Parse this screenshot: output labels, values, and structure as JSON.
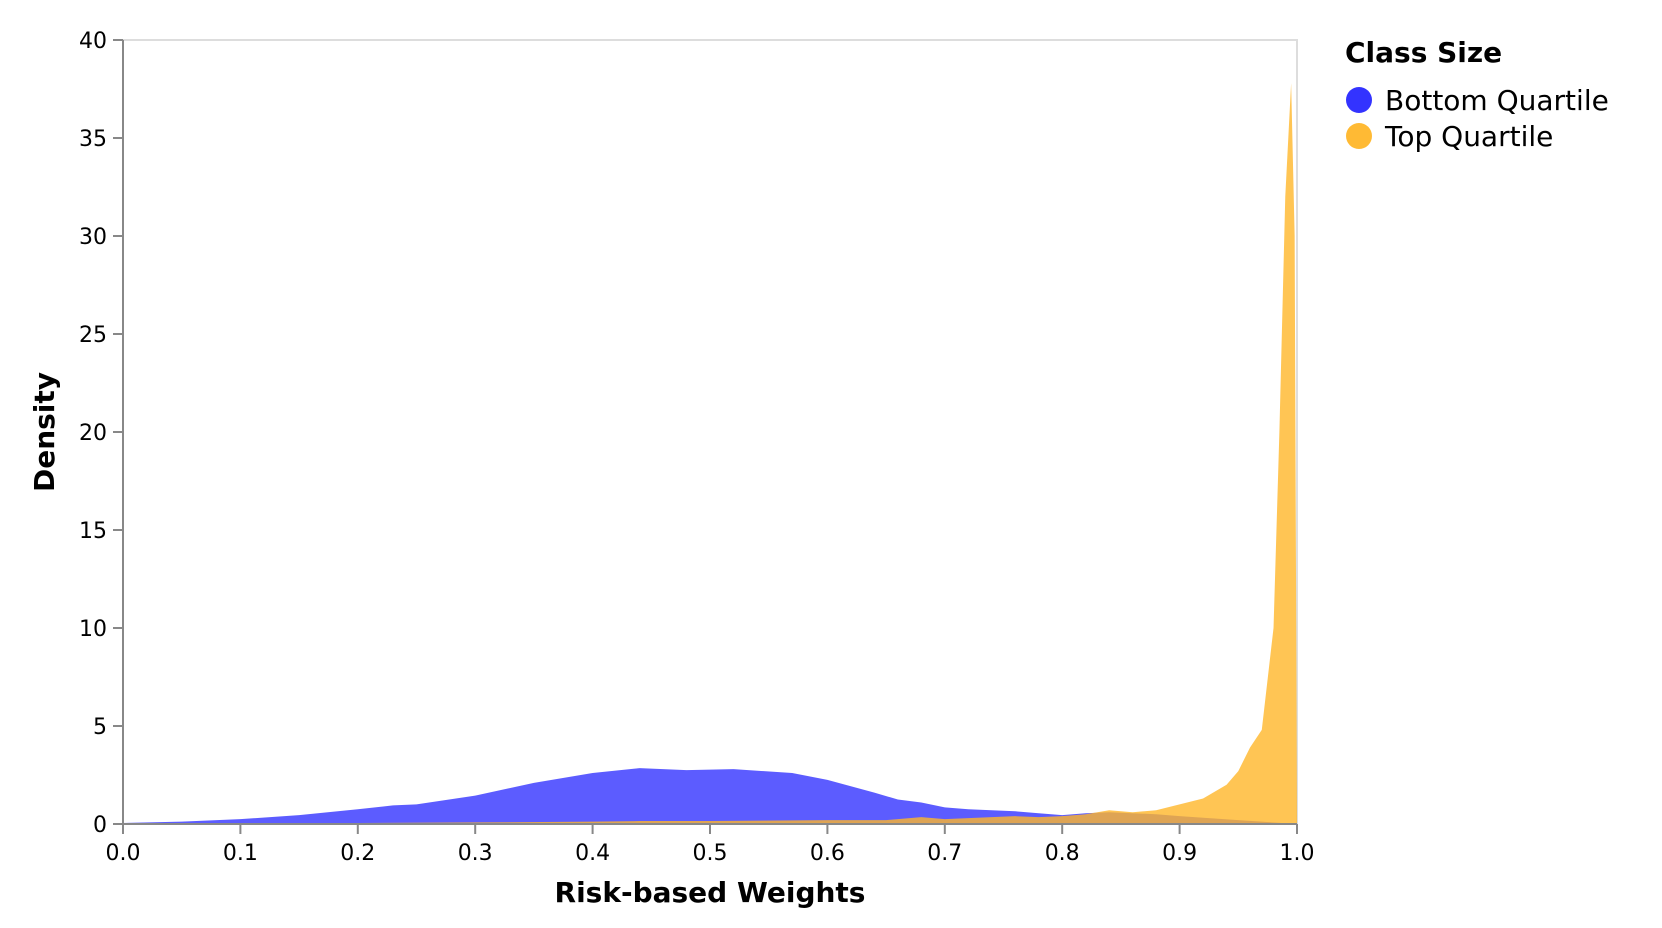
{
  "chart_data": {
    "type": "area",
    "xlabel": "Risk-based Weights",
    "ylabel": "Density",
    "xlim": [
      0.0,
      1.0
    ],
    "ylim": [
      0,
      40
    ],
    "x_ticks": [
      "0.0",
      "0.1",
      "0.2",
      "0.3",
      "0.4",
      "0.5",
      "0.6",
      "0.7",
      "0.8",
      "0.9",
      "1.0"
    ],
    "y_ticks": [
      "0",
      "5",
      "10",
      "15",
      "20",
      "25",
      "30",
      "35",
      "40"
    ],
    "grid": false,
    "legend": {
      "title": "Class Size",
      "placement": "right"
    },
    "series": [
      {
        "name": "Bottom Quartile",
        "color": "#3333ff",
        "opacity": 0.8,
        "x": [
          0.0,
          0.05,
          0.1,
          0.15,
          0.2,
          0.23,
          0.25,
          0.3,
          0.35,
          0.4,
          0.44,
          0.48,
          0.52,
          0.57,
          0.6,
          0.64,
          0.66,
          0.68,
          0.7,
          0.72,
          0.74,
          0.76,
          0.78,
          0.8,
          0.82,
          0.84,
          0.86,
          0.88,
          0.9,
          0.95,
          1.0
        ],
        "y": [
          0.05,
          0.12,
          0.25,
          0.45,
          0.75,
          0.95,
          1.0,
          1.45,
          2.1,
          2.6,
          2.85,
          2.75,
          2.8,
          2.6,
          2.25,
          1.6,
          1.25,
          1.1,
          0.85,
          0.75,
          0.7,
          0.65,
          0.55,
          0.45,
          0.55,
          0.6,
          0.55,
          0.5,
          0.4,
          0.2,
          0.0
        ]
      },
      {
        "name": "Top Quartile",
        "color": "#ffb629",
        "opacity": 0.8,
        "x": [
          0.0,
          0.1,
          0.2,
          0.3,
          0.4,
          0.44,
          0.5,
          0.6,
          0.65,
          0.68,
          0.7,
          0.72,
          0.74,
          0.76,
          0.78,
          0.8,
          0.82,
          0.84,
          0.86,
          0.88,
          0.9,
          0.92,
          0.94,
          0.95,
          0.96,
          0.97,
          0.98,
          0.985,
          0.99,
          0.995,
          0.998,
          1.0
        ],
        "y": [
          0.0,
          0.02,
          0.05,
          0.08,
          0.12,
          0.15,
          0.15,
          0.2,
          0.2,
          0.35,
          0.25,
          0.3,
          0.35,
          0.4,
          0.35,
          0.4,
          0.5,
          0.7,
          0.6,
          0.7,
          1.0,
          1.3,
          2.0,
          2.7,
          3.9,
          4.8,
          10.0,
          20.0,
          32.0,
          37.8,
          30.0,
          0.0
        ]
      }
    ]
  }
}
